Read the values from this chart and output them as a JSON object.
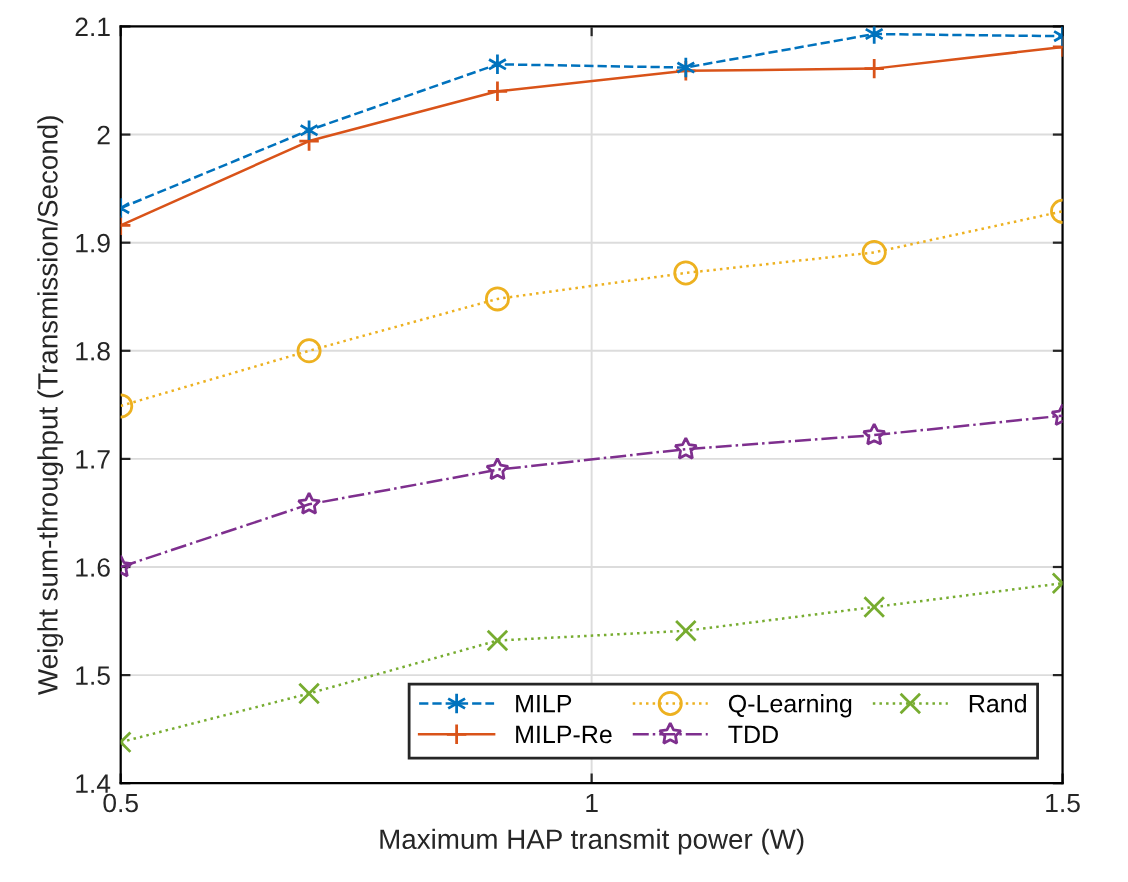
{
  "chart_data": {
    "type": "line",
    "xlabel": "Maximum HAP transmit power (W)",
    "ylabel": "Weight sum-throughput (Transmission/Second)",
    "x": [
      0.5,
      0.7,
      0.9,
      1.1,
      1.3,
      1.5
    ],
    "series": [
      {
        "name": "MILP",
        "color": "#0072bd",
        "marker": "cross",
        "line_style": "dashed",
        "values": [
          1.932,
          2.004,
          2.065,
          2.062,
          2.093,
          2.091
        ]
      },
      {
        "name": "MILP-Re",
        "color": "#d95319",
        "marker": "plus",
        "line_style": "solid",
        "values": [
          1.916,
          1.994,
          2.04,
          2.059,
          2.061,
          2.081
        ]
      },
      {
        "name": "Q-Learning",
        "color": "#edb120",
        "marker": "circle",
        "line_style": "dotted",
        "values": [
          1.749,
          1.8,
          1.848,
          1.872,
          1.891,
          1.929
        ]
      },
      {
        "name": "TDD",
        "color": "#7e2f8e",
        "marker": "star",
        "line_style": "dashdot",
        "values": [
          1.6,
          1.658,
          1.69,
          1.709,
          1.722,
          1.74
        ]
      },
      {
        "name": "Rand",
        "color": "#77ac30",
        "marker": "cross",
        "line_style": "dotted",
        "values": [
          1.438,
          1.483,
          1.532,
          1.541,
          1.563,
          1.585
        ]
      }
    ],
    "xlim": [
      0.5,
      1.5
    ],
    "xticks": [
      0.5,
      1,
      1.5
    ],
    "ylim": [
      1.4,
      2.1
    ],
    "yticks": [
      1.4,
      1.5,
      1.6,
      1.7,
      1.8,
      1.9,
      2,
      2.1
    ],
    "grid": true,
    "legend": "bottom right"
  }
}
